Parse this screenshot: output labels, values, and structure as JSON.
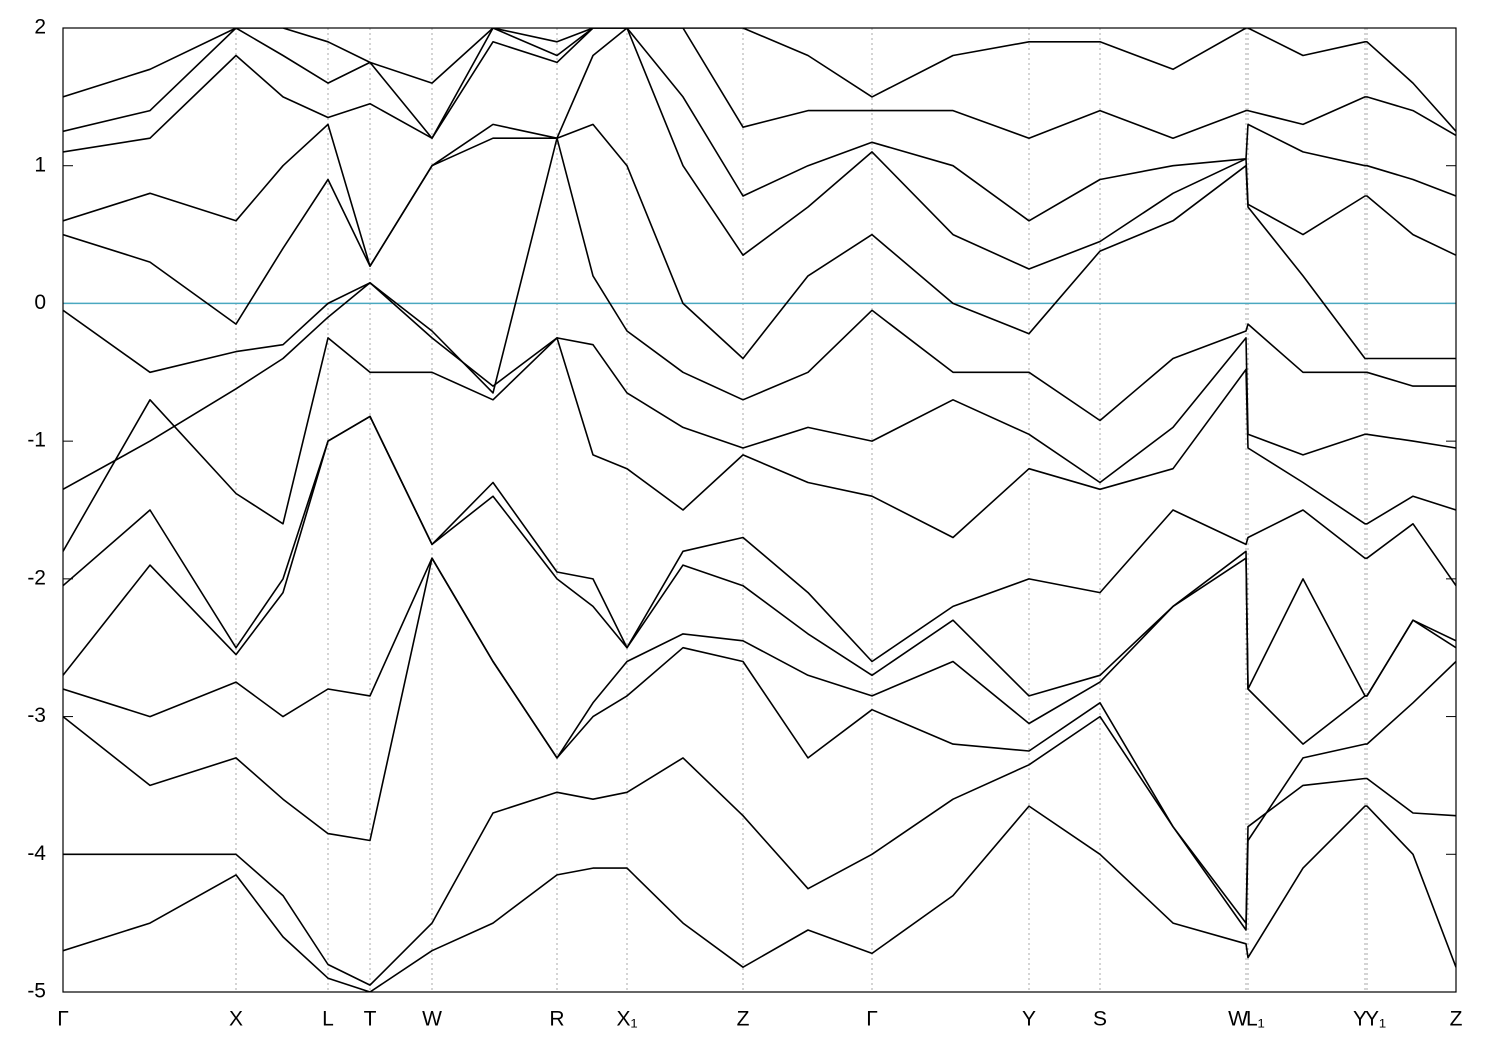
{
  "chart_data": {
    "type": "line",
    "line_color": "#000000",
    "fermi_level": 0,
    "fermi_color": "#4aa8c0",
    "grid": true,
    "xlim": [
      0,
      13.93
    ],
    "xticks": [
      {
        "value": 0,
        "label": "Γ"
      },
      {
        "value": 1.73,
        "label": "X"
      },
      {
        "value": 2.65,
        "label": "L"
      },
      {
        "value": 3.07,
        "label": "T"
      },
      {
        "value": 3.69,
        "label": "W"
      },
      {
        "value": 4.94,
        "label": "R"
      },
      {
        "value": 5.64,
        "label": "X₁"
      },
      {
        "value": 6.8,
        "label": "Z"
      },
      {
        "value": 8.09,
        "label": "Γ"
      },
      {
        "value": 9.66,
        "label": "Y"
      },
      {
        "value": 10.37,
        "label": "S"
      },
      {
        "value": 11.83,
        "label": "W"
      },
      {
        "value": 11.85,
        "label": "L₁"
      },
      {
        "value": 13.02,
        "label": "Y"
      },
      {
        "value": 13.04,
        "label": "Y₁"
      },
      {
        "value": 13.93,
        "label": "Z"
      }
    ],
    "ylim": [
      -5,
      2
    ],
    "yticks": [
      -5,
      -4,
      -3,
      -2,
      -1,
      0,
      1,
      2
    ],
    "x": [
      0,
      0.87,
      1.73,
      2.2,
      2.65,
      3.07,
      3.69,
      4.3,
      4.94,
      5.3,
      5.64,
      6.2,
      6.8,
      7.45,
      8.09,
      8.9,
      9.66,
      10.37,
      11.1,
      11.83,
      11.85,
      12.4,
      13.02,
      13.04,
      13.5,
      13.93
    ],
    "series": [
      {
        "values": [
          -4.7,
          -4.5,
          -4.15,
          -4.6,
          -4.9,
          -5.0,
          -4.7,
          -4.5,
          -4.15,
          -4.1,
          -4.1,
          -4.5,
          -4.82,
          -4.55,
          -4.72,
          -4.3,
          -3.65,
          -4.0,
          -4.5,
          -4.65,
          -4.75,
          -4.1,
          -3.65,
          -3.65,
          -4.0,
          -4.82
        ]
      },
      {
        "values": [
          -4.0,
          -4.0,
          -4.0,
          -4.3,
          -4.8,
          -4.95,
          -4.5,
          -3.7,
          -3.55,
          -3.6,
          -3.55,
          -3.3,
          -3.72,
          -4.25,
          -4.0,
          -3.6,
          -3.35,
          -3.0,
          -3.8,
          -4.5,
          -3.8,
          -3.5,
          -3.45,
          -3.45,
          -3.7,
          -3.72
        ]
      },
      {
        "values": [
          -3.0,
          -3.5,
          -3.3,
          -3.6,
          -3.85,
          -3.9,
          -1.85,
          -2.6,
          -3.3,
          -3.0,
          -2.85,
          -2.5,
          -2.6,
          -3.3,
          -2.95,
          -3.2,
          -3.25,
          -2.9,
          -3.8,
          -4.55,
          -3.9,
          -3.3,
          -3.2,
          -3.2,
          -2.9,
          -2.6
        ]
      },
      {
        "values": [
          -2.8,
          -3.0,
          -2.75,
          -3.0,
          -2.8,
          -2.85,
          -1.85,
          -2.6,
          -3.3,
          -2.9,
          -2.6,
          -2.4,
          -2.45,
          -2.7,
          -2.85,
          -2.6,
          -3.05,
          -2.75,
          -2.2,
          -1.85,
          -2.8,
          -3.2,
          -2.85,
          -2.85,
          -2.3,
          -2.5
        ]
      },
      {
        "values": [
          -2.7,
          -1.9,
          -2.55,
          -2.1,
          -1.0,
          -0.82,
          -1.75,
          -1.4,
          -2.0,
          -2.2,
          -2.5,
          -1.9,
          -2.05,
          -2.4,
          -2.7,
          -2.3,
          -2.85,
          -2.7,
          -2.2,
          -1.8,
          -2.8,
          -2.0,
          -2.85,
          -2.85,
          -2.3,
          -2.45
        ]
      },
      {
        "values": [
          -2.05,
          -1.5,
          -2.5,
          -2.0,
          -1.0,
          -0.82,
          -1.75,
          -1.3,
          -1.95,
          -2.0,
          -2.5,
          -1.8,
          -1.7,
          -2.1,
          -2.6,
          -2.2,
          -2.0,
          -2.1,
          -1.5,
          -1.75,
          -1.7,
          -1.5,
          -1.85,
          -1.85,
          -1.6,
          -2.05
        ]
      },
      {
        "values": [
          -1.8,
          -0.7,
          -1.38,
          -1.6,
          -0.25,
          -0.5,
          -0.5,
          -0.7,
          -0.25,
          -1.1,
          -1.2,
          -1.5,
          -1.1,
          -1.3,
          -1.4,
          -1.7,
          -1.2,
          -1.35,
          -1.2,
          -0.48,
          -1.05,
          -1.3,
          -1.6,
          -1.6,
          -1.4,
          -1.5
        ]
      },
      {
        "values": [
          -1.35,
          -1.0,
          -0.62,
          -0.4,
          -0.1,
          0.15,
          -0.25,
          -0.6,
          -0.25,
          -0.3,
          -0.65,
          -0.9,
          -1.05,
          -0.9,
          -1.0,
          -0.7,
          -0.95,
          -1.3,
          -0.9,
          -0.25,
          -0.95,
          -1.1,
          -0.95,
          -0.95,
          -1.0,
          -1.05
        ]
      },
      {
        "values": [
          -0.05,
          -0.5,
          -0.35,
          -0.3,
          0.0,
          0.15,
          -0.2,
          -0.65,
          1.2,
          0.2,
          -0.2,
          -0.5,
          -0.7,
          -0.5,
          -0.05,
          -0.5,
          -0.5,
          -0.85,
          -0.4,
          -0.2,
          -0.15,
          -0.5,
          -0.5,
          -0.5,
          -0.6,
          -0.6
        ]
      },
      {
        "values": [
          0.5,
          0.3,
          -0.15,
          0.4,
          0.9,
          0.27,
          1.0,
          1.2,
          1.2,
          1.3,
          1.0,
          0.0,
          -0.4,
          0.2,
          0.5,
          0.0,
          -0.22,
          0.38,
          0.6,
          1.0,
          0.7,
          0.2,
          -0.4,
          -0.4,
          -0.4,
          -0.4
        ]
      },
      {
        "values": [
          0.6,
          0.8,
          0.6,
          1.0,
          1.3,
          0.27,
          1.0,
          1.3,
          1.2,
          1.8,
          2.0,
          1.0,
          0.35,
          0.7,
          1.1,
          0.5,
          0.25,
          0.45,
          0.8,
          1.05,
          0.72,
          0.5,
          0.78,
          0.78,
          0.5,
          0.35
        ]
      },
      {
        "values": [
          1.1,
          1.2,
          1.8,
          1.5,
          1.35,
          1.45,
          1.2,
          1.9,
          1.75,
          2.0,
          2.0,
          1.5,
          0.78,
          1.0,
          1.17,
          1.0,
          0.6,
          0.9,
          1.0,
          1.05,
          1.3,
          1.1,
          1.0,
          1.0,
          0.9,
          0.78
        ]
      },
      {
        "values": [
          1.25,
          1.4,
          2.0,
          1.8,
          1.6,
          1.75,
          1.2,
          2.0,
          1.8,
          2.0,
          2.0,
          2.0,
          1.28,
          1.4,
          1.4,
          1.4,
          1.2,
          1.4,
          1.2,
          1.4,
          1.4,
          1.3,
          1.5,
          1.5,
          1.4,
          1.22
        ]
      },
      {
        "values": [
          1.5,
          1.7,
          2.0,
          2.0,
          1.9,
          1.75,
          1.6,
          2.0,
          1.9,
          2.0,
          2.0,
          2.0,
          2.0,
          1.8,
          1.5,
          1.8,
          1.9,
          1.9,
          1.7,
          2.0,
          2.0,
          1.8,
          1.9,
          1.9,
          1.6,
          1.25
        ]
      }
    ]
  }
}
